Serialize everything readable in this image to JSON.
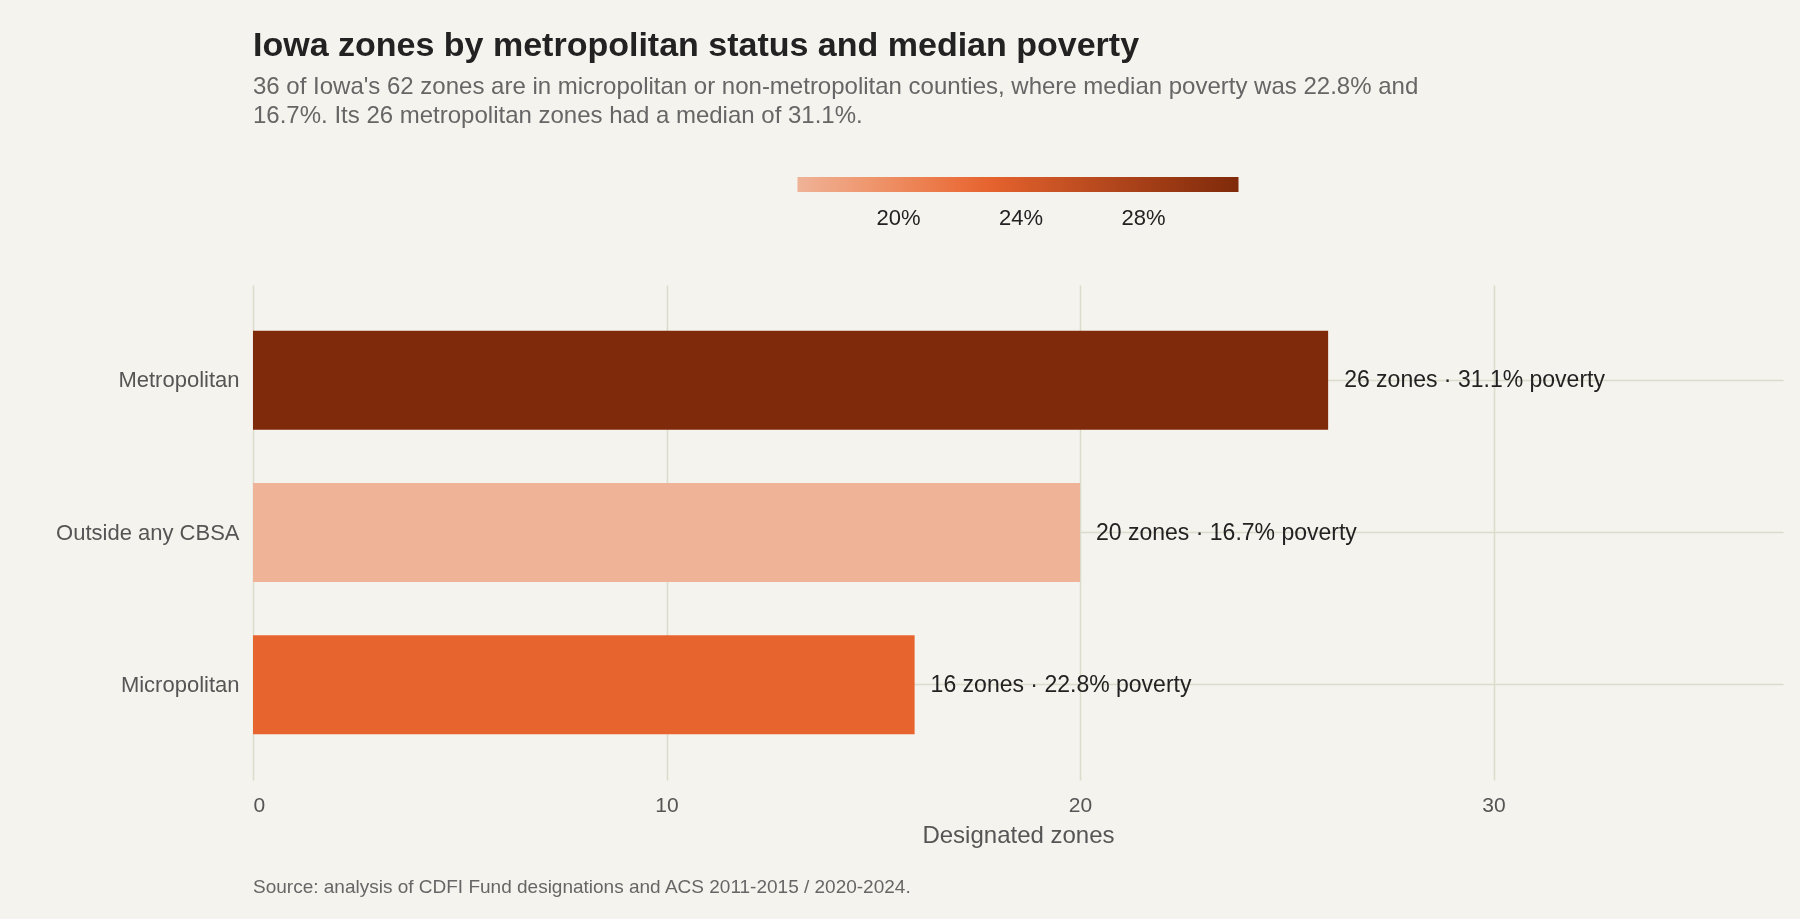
{
  "chart_data": {
    "type": "bar",
    "orientation": "horizontal",
    "title": "Iowa zones by metropolitan status and median poverty",
    "subtitle": "36 of Iowa's 62 zones are in micropolitan or non-metropolitan counties, where median poverty was 22.8% and 16.7%. Its 26 metropolitan zones had a median of 31.1%.",
    "categories": [
      "Metropolitan",
      "Outside any CBSA",
      "Micropolitan"
    ],
    "values": [
      26,
      20,
      16
    ],
    "colors": [
      "#7f2a0a",
      "#efb397",
      "#e8642f"
    ],
    "cvalues": [
      31.1,
      16.7,
      22.8
    ],
    "clim": [
      16.7,
      31.1
    ],
    "cticks": [
      {
        "value": 20,
        "label": "20%"
      },
      {
        "value": 24,
        "label": "24%"
      },
      {
        "value": 28,
        "label": "28%"
      }
    ],
    "value_labels": [
      "26 zones · 31.1% poverty",
      "20 zones · 16.7% poverty",
      "16 zones · 22.8% poverty"
    ],
    "xlabel": "Designated zones",
    "xlim": [
      0,
      37
    ],
    "xticks": [
      0,
      10,
      20,
      30
    ],
    "grid": true,
    "annotations": [
      "Source: analysis of CDFI Fund designations and ACS 2011-2015 / 2020-2024."
    ]
  }
}
